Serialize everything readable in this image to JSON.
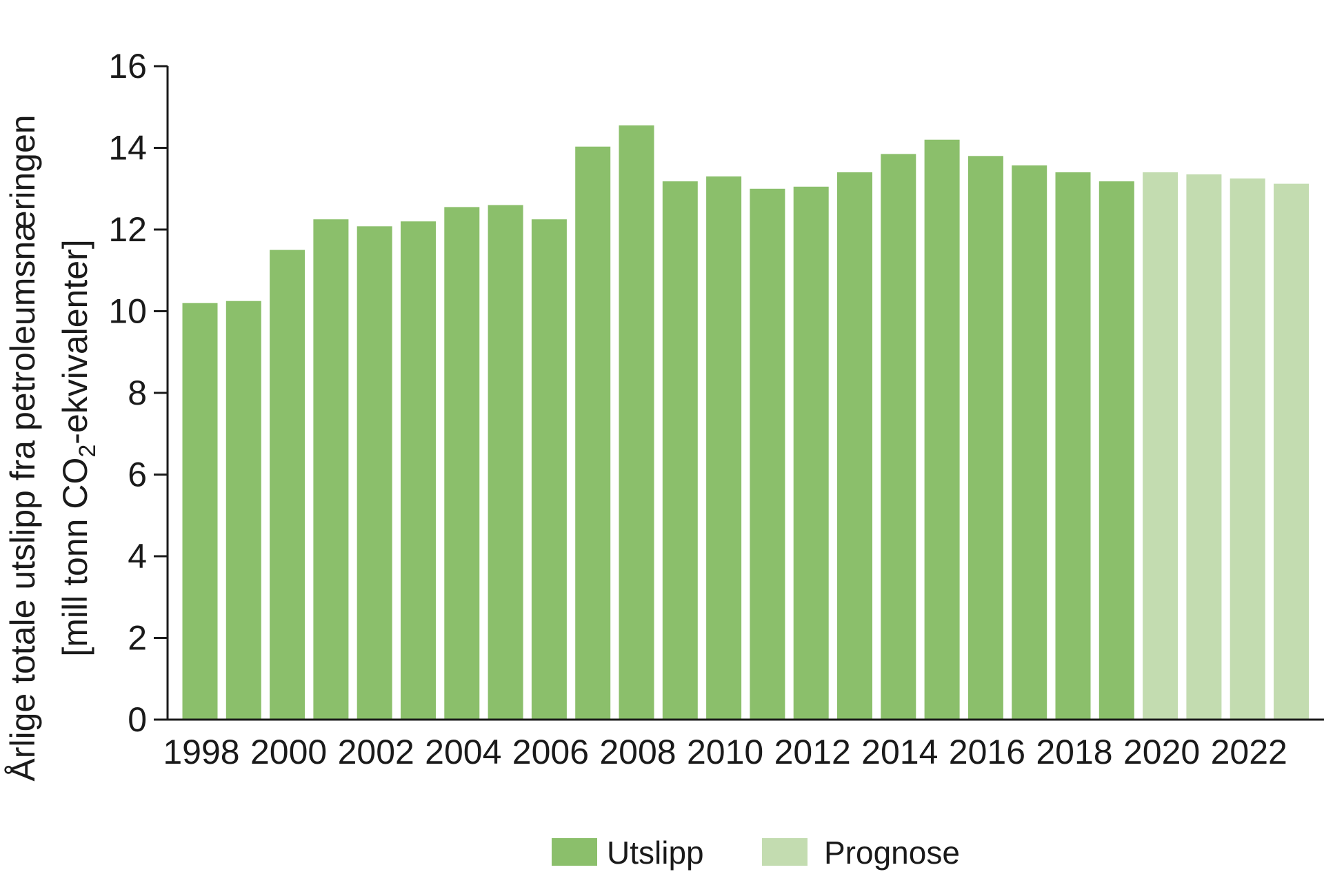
{
  "chart_data": {
    "type": "bar",
    "x": [
      1998,
      1999,
      2000,
      2001,
      2002,
      2003,
      2004,
      2005,
      2006,
      2007,
      2008,
      2009,
      2010,
      2011,
      2012,
      2013,
      2014,
      2015,
      2016,
      2017,
      2018,
      2019,
      2020,
      2021,
      2022,
      2023
    ],
    "series": [
      {
        "name": "Utslipp",
        "color": "#8bbf6b",
        "x": [
          1998,
          1999,
          2000,
          2001,
          2002,
          2003,
          2004,
          2005,
          2006,
          2007,
          2008,
          2009,
          2010,
          2011,
          2012,
          2013,
          2014,
          2015,
          2016,
          2017,
          2018,
          2019
        ],
        "values": [
          10.2,
          10.25,
          11.5,
          12.25,
          12.08,
          12.2,
          12.55,
          12.6,
          12.25,
          14.03,
          14.55,
          13.18,
          13.3,
          13.0,
          13.05,
          13.4,
          13.85,
          14.2,
          13.8,
          13.57,
          13.4,
          13.18
        ]
      },
      {
        "name": "Prognose",
        "color": "#c3dcb0",
        "x": [
          2020,
          2021,
          2022,
          2023
        ],
        "values": [
          13.4,
          13.35,
          13.25,
          13.12
        ]
      }
    ],
    "ylabel_line1": "Årlige totale utslipp fra petroleumsnæringen",
    "ylabel_line2_prefix": "[mill tonn CO",
    "ylabel_line2_sub": "2",
    "ylabel_line2_suffix": "-ekvivalenter]",
    "ylim": [
      0,
      16
    ],
    "yticks": [
      0,
      2,
      4,
      6,
      8,
      10,
      12,
      14,
      16
    ],
    "xticks": [
      1998,
      2000,
      2002,
      2004,
      2006,
      2008,
      2010,
      2012,
      2014,
      2016,
      2018,
      2020,
      2022
    ],
    "grid": false,
    "legend_position": "bottom-center"
  }
}
